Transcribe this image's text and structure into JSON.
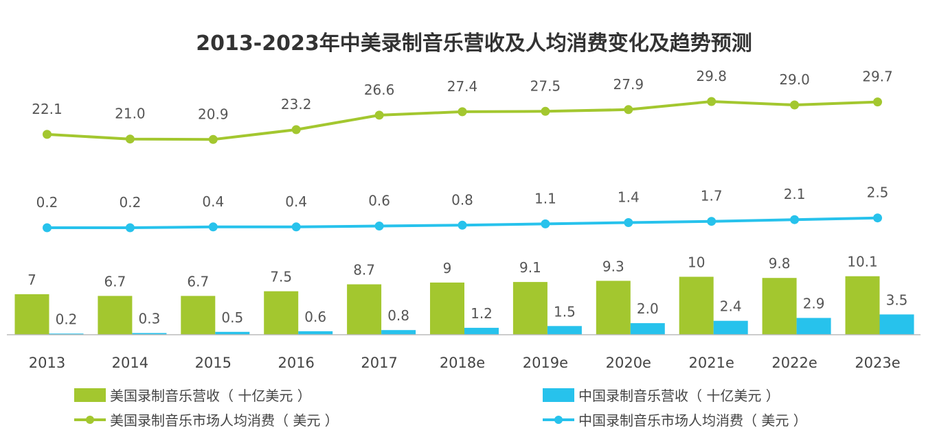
{
  "title": "2013-2023年中美录制音乐营收及人均消费变化及趋势预测",
  "colors": {
    "us": "#a3c72f",
    "cn": "#27c2ec",
    "text": "#555555",
    "axis": "#bbbbbb"
  },
  "chart_data": {
    "type": "bar+line",
    "title": "2013-2023年中美录制音乐营收及人均消费变化及趋势预测",
    "categories": [
      "2013",
      "2014",
      "2015",
      "2016",
      "2017",
      "2018e",
      "2019e",
      "2020e",
      "2021e",
      "2022e",
      "2023e"
    ],
    "bar_series": [
      {
        "name": "美国录制音乐营收（ 十亿美元 ）",
        "labels": [
          "7",
          "6.7",
          "6.7",
          "7.5",
          "8.7",
          "9",
          "9.1",
          "9.3",
          "10",
          "9.8",
          "10.1"
        ]
      },
      {
        "name": "中国录制音乐营收（ 十亿美元 ）",
        "labels": [
          "0.2",
          "0.3",
          "0.5",
          "0.6",
          "0.8",
          "1.2",
          "1.5",
          "2.0",
          "2.4",
          "2.9",
          "3.5"
        ]
      }
    ],
    "line_series": [
      {
        "name": "美国录制音乐市场人均消费（ 美元 ）",
        "labels": [
          "22.1",
          "21.0",
          "20.9",
          "23.2",
          "26.6",
          "27.4",
          "27.5",
          "27.9",
          "29.8",
          "29.0",
          "29.7"
        ]
      },
      {
        "name": "中国录制音乐市场人均消费（ 美元 ）",
        "labels": [
          "0.2",
          "0.2",
          "0.4",
          "0.4",
          "0.6",
          "0.8",
          "1.1",
          "1.4",
          "1.7",
          "2.1",
          "2.5"
        ]
      }
    ],
    "bar_ylim": [
      0,
      22
    ],
    "line_ylim": [
      -11,
      34
    ],
    "legend_position": "bottom"
  }
}
